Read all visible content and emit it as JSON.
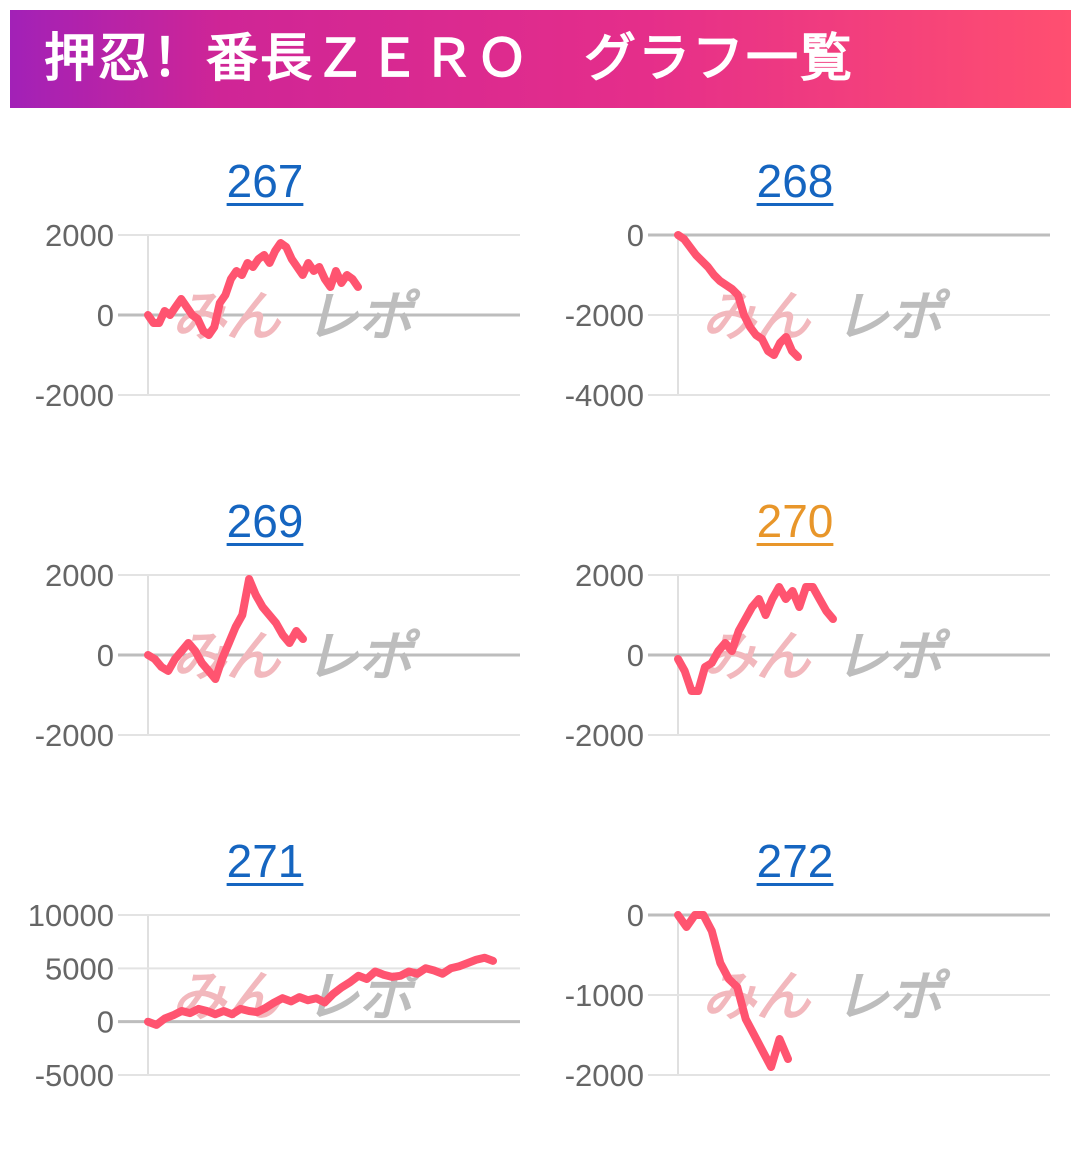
{
  "header": {
    "title": "押忍！番長ＺＥＲＯ　グラフ一覧"
  },
  "watermark": {
    "part_a": "みん",
    "part_b": "レポ"
  },
  "colors": {
    "line": "#ff5470",
    "link": "#1565c0",
    "visited": "#e8962a"
  },
  "chart_data": [
    {
      "type": "line",
      "title": "267",
      "link_state": "link",
      "ylim": [
        -2000,
        2000
      ],
      "yticks": [
        2000,
        0,
        -2000
      ],
      "values": [
        0,
        -200,
        -200,
        100,
        0,
        200,
        400,
        200,
        0,
        -100,
        -400,
        -500,
        -300,
        300,
        500,
        900,
        1100,
        1000,
        1300,
        1200,
        1400,
        1500,
        1300,
        1600,
        1800,
        1700,
        1400,
        1200,
        1000,
        1300,
        1100,
        1200,
        900,
        700,
        1100,
        800,
        1000,
        900,
        700
      ]
    },
    {
      "type": "line",
      "title": "268",
      "link_state": "link",
      "ylim": [
        -4000,
        0
      ],
      "yticks": [
        0,
        -2000,
        -4000
      ],
      "values": [
        0,
        -100,
        -300,
        -500,
        -650,
        -800,
        -1000,
        -1150,
        -1250,
        -1350,
        -1500,
        -2000,
        -2300,
        -2500,
        -2600,
        -2900,
        -3000,
        -2700,
        -2550,
        -2900,
        -3050
      ]
    },
    {
      "type": "line",
      "title": "269",
      "link_state": "link",
      "ylim": [
        -2000,
        2000
      ],
      "yticks": [
        2000,
        0,
        -2000
      ],
      "values": [
        0,
        -100,
        -300,
        -400,
        -100,
        100,
        300,
        100,
        -200,
        -400,
        -600,
        -100,
        300,
        700,
        1000,
        1900,
        1500,
        1200,
        1000,
        800,
        500,
        300,
        600,
        400
      ]
    },
    {
      "type": "line",
      "title": "270",
      "link_state": "visited",
      "ylim": [
        -2000,
        2000
      ],
      "yticks": [
        2000,
        0,
        -2000
      ],
      "values": [
        -100,
        -400,
        -900,
        -900,
        -300,
        -200,
        100,
        300,
        100,
        600,
        900,
        1200,
        1400,
        1000,
        1400,
        1700,
        1400,
        1600,
        1200,
        1700,
        1700,
        1400,
        1100,
        900
      ]
    },
    {
      "type": "line",
      "title": "271",
      "link_state": "link",
      "ylim": [
        -5000,
        10000
      ],
      "yticks": [
        10000,
        5000,
        0,
        -5000
      ],
      "values": [
        0,
        -300,
        300,
        600,
        1000,
        800,
        1200,
        1000,
        700,
        1000,
        700,
        1200,
        1000,
        900,
        1300,
        1800,
        2200,
        1900,
        2300,
        2000,
        2200,
        1800,
        2600,
        3200,
        3700,
        4300,
        4000,
        4700,
        4400,
        4200,
        4300,
        4700,
        4500,
        5000,
        4800,
        4500,
        5000,
        5200,
        5500,
        5800,
        6000,
        5700
      ]
    },
    {
      "type": "line",
      "title": "272",
      "link_state": "link",
      "ylim": [
        -2000,
        0
      ],
      "yticks": [
        0,
        -1000,
        -2000
      ],
      "values": [
        0,
        -150,
        0,
        0,
        -200,
        -600,
        -800,
        -900,
        -1300,
        -1500,
        -1700,
        -1900,
        -1550,
        -1800
      ]
    }
  ]
}
